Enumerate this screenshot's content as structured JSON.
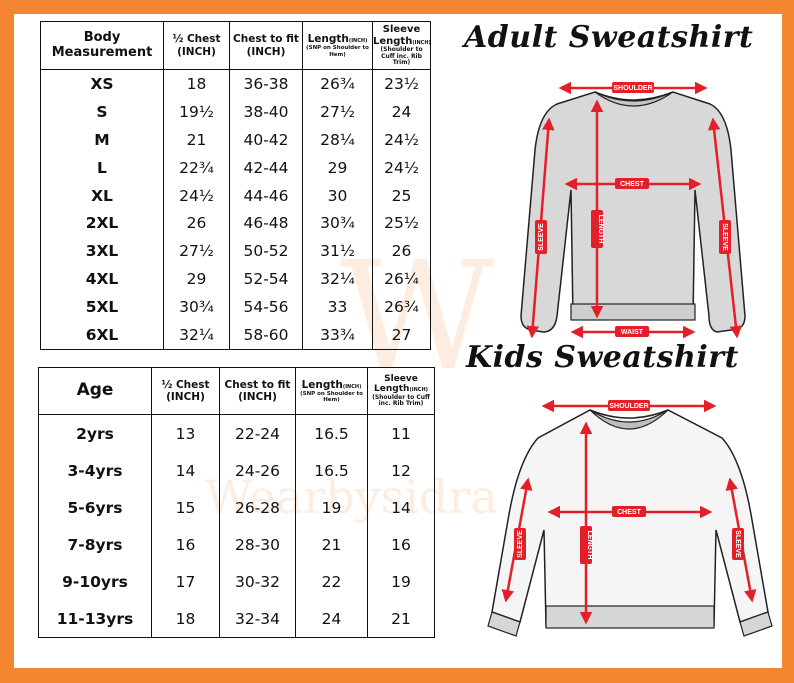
{
  "adult_table": {
    "headers": {
      "body_measurement": "Body Measurement",
      "half_chest": "½ Chest",
      "half_chest_unit": "(INCH)",
      "chest_to_fit": "Chest to fit",
      "chest_to_fit_unit": "(INCH)",
      "length": "Length",
      "length_unit": "(INCH)",
      "length_note": "(SNP on Shoulder to Hem)",
      "sleeve": "Sleeve Length",
      "sleeve_unit": "(INCH)",
      "sleeve_note": "(Shoulder to Cuff inc. Rib Trim)"
    },
    "rows": [
      {
        "size": "XS",
        "half_chest": "18",
        "chest_to_fit": "36-38",
        "length": "26¾",
        "sleeve": "23½"
      },
      {
        "size": "S",
        "half_chest": "19½",
        "chest_to_fit": "38-40",
        "length": "27½",
        "sleeve": "24"
      },
      {
        "size": "M",
        "half_chest": "21",
        "chest_to_fit": "40-42",
        "length": "28¼",
        "sleeve": "24½"
      },
      {
        "size": "L",
        "half_chest": "22¾",
        "chest_to_fit": "42-44",
        "length": "29",
        "sleeve": "24½"
      },
      {
        "size": "XL",
        "half_chest": "24½",
        "chest_to_fit": "44-46",
        "length": "30",
        "sleeve": "25"
      },
      {
        "size": "2XL",
        "half_chest": "26",
        "chest_to_fit": "46-48",
        "length": "30¾",
        "sleeve": "25½"
      },
      {
        "size": "3XL",
        "half_chest": "27½",
        "chest_to_fit": "50-52",
        "length": "31½",
        "sleeve": "26"
      },
      {
        "size": "4XL",
        "half_chest": "29",
        "chest_to_fit": "52-54",
        "length": "32¼",
        "sleeve": "26¼"
      },
      {
        "size": "5XL",
        "half_chest": "30¾",
        "chest_to_fit": "54-56",
        "length": "33",
        "sleeve": "26¾"
      },
      {
        "size": "6XL",
        "half_chest": "32¼",
        "chest_to_fit": "58-60",
        "length": "33¾",
        "sleeve": "27"
      }
    ]
  },
  "kids_table": {
    "headers": {
      "age": "Age",
      "half_chest": "½ Chest",
      "half_chest_unit": "(INCH)",
      "chest_to_fit": "Chest to fit",
      "chest_to_fit_unit": "(INCH)",
      "length": "Length",
      "length_unit": "(INCH)",
      "length_note": "(SNP on Shoulder to Hem)",
      "sleeve": "Sleeve Length",
      "sleeve_unit": "(INCH)",
      "sleeve_note": "(Shoulder to Cuff inc. Rib Trim)"
    },
    "rows": [
      {
        "age": "2yrs",
        "half_chest": "13",
        "chest_to_fit": "22-24",
        "length": "16.5",
        "sleeve": "11"
      },
      {
        "age": "3-4yrs",
        "half_chest": "14",
        "chest_to_fit": "24-26",
        "length": "16.5",
        "sleeve": "12"
      },
      {
        "age": "5-6yrs",
        "half_chest": "15",
        "chest_to_fit": "26-28",
        "length": "19",
        "sleeve": "14"
      },
      {
        "age": "7-8yrs",
        "half_chest": "16",
        "chest_to_fit": "28-30",
        "length": "21",
        "sleeve": "16"
      },
      {
        "age": "9-10yrs",
        "half_chest": "17",
        "chest_to_fit": "30-32",
        "length": "22",
        "sleeve": "19"
      },
      {
        "age": "11-13yrs",
        "half_chest": "18",
        "chest_to_fit": "32-34",
        "length": "24",
        "sleeve": "21"
      }
    ]
  },
  "adult_title": "Adult Sweatshirt",
  "kids_title": "Kids Sweatshirt",
  "adult_diagram": {
    "shoulder": "SHOULDER",
    "chest": "CHEST",
    "length": "LENGTH",
    "sleeve": "SLEEVE",
    "waist": "WAIST"
  },
  "kids_diagram": {
    "shoulder": "SHOULDER",
    "chest": "CHEST",
    "length": "LENGTH",
    "sleeve": "SLEEVE"
  },
  "watermark": "Wearbysidra",
  "colors": {
    "frame": "#F48531",
    "measure_red": "#E3202A",
    "adult_shirt": "#D8D8D8",
    "kids_shirt": "#F5F5F5"
  }
}
